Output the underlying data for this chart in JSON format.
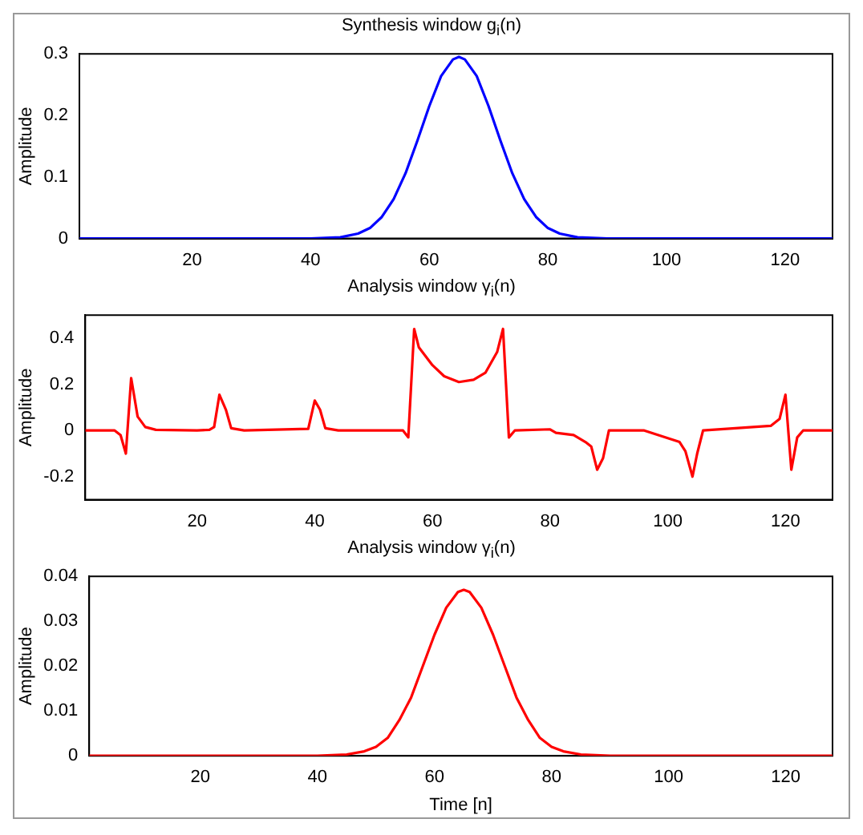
{
  "chart_data": [
    {
      "type": "line",
      "title": "Synthesis window g$_{i}$(n)",
      "ylabel": "Amplitude",
      "xlim": [
        1,
        128
      ],
      "xticks": [
        20,
        40,
        60,
        80,
        100,
        120
      ],
      "ylim": [
        0,
        0.3
      ],
      "yticks": [
        0,
        0.1,
        0.2,
        0.3
      ],
      "x": [
        1,
        20,
        40,
        45,
        48,
        50,
        52,
        54,
        56,
        58,
        60,
        62,
        64,
        65,
        66,
        68,
        70,
        72,
        74,
        76,
        78,
        80,
        82,
        85,
        90,
        110,
        128
      ],
      "series": [
        {
          "color": "#0000ff",
          "values": [
            0,
            0,
            0,
            0.002,
            0.008,
            0.017,
            0.035,
            0.064,
            0.106,
            0.159,
            0.215,
            0.264,
            0.291,
            0.295,
            0.291,
            0.264,
            0.215,
            0.159,
            0.106,
            0.064,
            0.035,
            0.017,
            0.008,
            0.002,
            0,
            0,
            0
          ]
        }
      ]
    },
    {
      "type": "line",
      "title": "Analysis window γ$_{i}$(n)",
      "ylabel": "Amplitude",
      "xlim": [
        1,
        128
      ],
      "xticks": [
        20,
        40,
        60,
        80,
        100,
        120
      ],
      "ylim": [
        -0.3,
        0.5
      ],
      "yticks": [
        -0.2,
        0,
        0.2,
        0.4
      ],
      "x": [
        1,
        6,
        7,
        7.9,
        8.8,
        9.9,
        11.2,
        13,
        20,
        22.1,
        22.9,
        23.8,
        24.9,
        25.8,
        28,
        38.9,
        40,
        40.9,
        41.8,
        44,
        55,
        55.9,
        56.9,
        57.7,
        60,
        62,
        64.5,
        67,
        69,
        71,
        72,
        73,
        74,
        80,
        81,
        84,
        86,
        87,
        88,
        89,
        90,
        96,
        102,
        103,
        104.2,
        105,
        106,
        117.5,
        119,
        120,
        121,
        122,
        123,
        128
      ],
      "series": [
        {
          "color": "#ff0000",
          "values": [
            0,
            0,
            -0.02,
            -0.1,
            0.227,
            0.06,
            0.015,
            0.003,
            0,
            0.003,
            0.015,
            0.155,
            0.09,
            0.01,
            0,
            0.007,
            0.13,
            0.09,
            0.01,
            0,
            0,
            -0.03,
            0.44,
            0.36,
            0.283,
            0.235,
            0.21,
            0.22,
            0.25,
            0.34,
            0.44,
            -0.03,
            0,
            0.005,
            -0.01,
            -0.02,
            -0.05,
            -0.07,
            -0.17,
            -0.12,
            0,
            0,
            -0.05,
            -0.09,
            -0.2,
            -0.1,
            0,
            0.02,
            0.05,
            0.155,
            -0.17,
            -0.03,
            0,
            0
          ]
        }
      ]
    },
    {
      "type": "line",
      "title": "Analysis window γ$_{i}$(n)",
      "xlabel": "Time [n]",
      "ylabel": "Amplitude",
      "xlim": [
        1,
        128
      ],
      "xticks": [
        20,
        40,
        60,
        80,
        100,
        120
      ],
      "ylim": [
        0,
        0.04
      ],
      "yticks": [
        0,
        0.01,
        0.02,
        0.03,
        0.04
      ],
      "x": [
        1,
        20,
        40,
        45,
        48,
        50,
        52,
        54,
        56,
        58,
        60,
        62,
        64,
        65,
        66,
        68,
        70,
        72,
        74,
        76,
        78,
        80,
        82,
        85,
        90,
        110,
        128
      ],
      "series": [
        {
          "color": "#ff0000",
          "values": [
            0,
            0,
            0,
            0.0003,
            0.001,
            0.002,
            0.004,
            0.008,
            0.013,
            0.02,
            0.027,
            0.033,
            0.0365,
            0.037,
            0.0365,
            0.033,
            0.027,
            0.02,
            0.013,
            0.008,
            0.004,
            0.002,
            0.001,
            0.0003,
            0,
            0,
            0
          ]
        }
      ]
    }
  ]
}
